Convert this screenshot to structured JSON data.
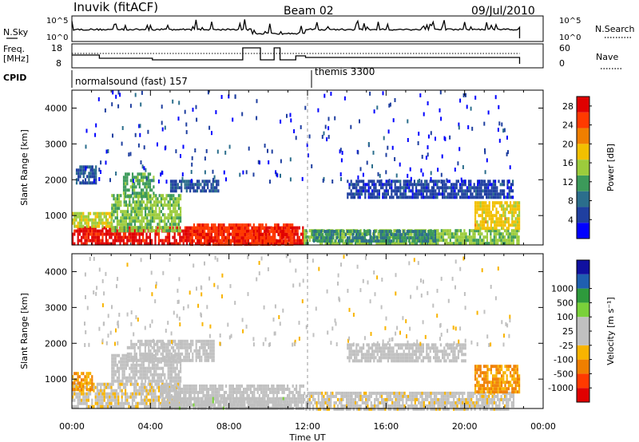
{
  "header": {
    "station": "Inuvik (fitACF)",
    "beam": "Beam 02",
    "date": "09/Jul/2010"
  },
  "strip_labels": {
    "nsky": "N.Sky",
    "nsky_top": "10^5",
    "nsky_bottom": "10^0",
    "nsearch": "N.Search",
    "nsearch_top": "10^5",
    "nsearch_bottom": "10^0",
    "freq_label_1": "Freq.",
    "freq_label_2": "[MHz]",
    "freq_top": "18",
    "freq_bottom": "8",
    "nave": "Nave",
    "nave_top": "60",
    "nave_bottom": "0",
    "cpid": "CPID",
    "cpid_1": "normalsound (fast) 157",
    "cpid_2": "themis 3300"
  },
  "x_axis": {
    "title": "Time UT",
    "ticks": [
      "00:00",
      "04:00",
      "08:00",
      "12:00",
      "16:00",
      "20:00",
      "00:00"
    ]
  },
  "colors": {
    "power": [
      "#0000ff",
      "#1f3fa0",
      "#2b6e8c",
      "#3c9a5a",
      "#9ccc3c",
      "#f2c000",
      "#f07f00",
      "#ff3a00",
      "#e00000"
    ],
    "velocity": [
      "#e00000",
      "#ff3a00",
      "#f07f00",
      "#f8b400",
      "#c0c0c0",
      "#c0c0c0",
      "#7ad13a",
      "#2e9a3c",
      "#1f5fb0",
      "#1010a0"
    ]
  },
  "chart_data": [
    {
      "type": "heatmap",
      "title": "",
      "ylabel": "Slant Range [km]",
      "xlabel": "",
      "xlim": [
        0,
        24
      ],
      "ylim": [
        180,
        4500
      ],
      "yticks": [
        "1000",
        "2000",
        "3000",
        "4000"
      ],
      "colorbar": {
        "label": "Power [dB]",
        "ticks": [
          "4",
          "8",
          "12",
          "16",
          "20",
          "24",
          "28"
        ],
        "range": [
          0,
          30
        ]
      },
      "bands": [
        {
          "t0": 0.0,
          "t1": 11.8,
          "r0": 190,
          "r1": 700,
          "value": 28
        },
        {
          "t0": 0.0,
          "t1": 2.0,
          "r0": 700,
          "r1": 1100,
          "value": 16
        },
        {
          "t0": 2.0,
          "t1": 5.5,
          "r0": 600,
          "r1": 1600,
          "value": 14
        },
        {
          "t0": 2.6,
          "t1": 4.2,
          "r0": 1500,
          "r1": 2200,
          "value": 12
        },
        {
          "t0": 5.0,
          "t1": 7.5,
          "r0": 1700,
          "r1": 2000,
          "value": 6
        },
        {
          "t0": 0.2,
          "t1": 1.2,
          "r0": 1900,
          "r1": 2400,
          "value": 6
        },
        {
          "t0": 6.0,
          "t1": 11.2,
          "r0": 200,
          "r1": 780,
          "value": 26
        },
        {
          "t0": 11.8,
          "t1": 22.8,
          "r0": 200,
          "r1": 620,
          "value": 14
        },
        {
          "t0": 12.2,
          "t1": 18.5,
          "r0": 300,
          "r1": 600,
          "value": 10
        },
        {
          "t0": 14.0,
          "t1": 22.5,
          "r0": 1500,
          "r1": 2000,
          "value": 5
        },
        {
          "t0": 20.5,
          "t1": 22.8,
          "r0": 600,
          "r1": 1400,
          "value": 18
        }
      ],
      "scatter_region": {
        "t0": 0.5,
        "t1": 22.5,
        "r0": 2000,
        "r1": 4500,
        "value": 4
      }
    },
    {
      "type": "heatmap",
      "title": "",
      "ylabel": "Slant Range [km]",
      "xlabel": "Time UT",
      "xlim": [
        0,
        24
      ],
      "ylim": [
        180,
        4500
      ],
      "yticks": [
        "1000",
        "2000",
        "3000",
        "4000"
      ],
      "colorbar": {
        "label": "Velocity [m s^-1]",
        "ticks": [
          "-1000",
          "-500",
          "-100",
          "-25",
          "25",
          "100",
          "500",
          "1000"
        ],
        "range": [
          -1200,
          1200
        ]
      },
      "bands": [
        {
          "t0": 0.0,
          "t1": 5.5,
          "r0": 190,
          "r1": 900,
          "value": -150
        },
        {
          "t0": 0.0,
          "t1": 1.0,
          "r0": 700,
          "r1": 1200,
          "value": -500
        },
        {
          "t0": 2.0,
          "t1": 5.5,
          "r0": 900,
          "r1": 1700,
          "value": -60
        },
        {
          "t0": 4.5,
          "t1": 11.8,
          "r0": 200,
          "r1": 850,
          "value": 0
        },
        {
          "t0": 5.0,
          "t1": 11.0,
          "r0": 190,
          "r1": 500,
          "value": 80
        },
        {
          "t0": 2.8,
          "t1": 7.2,
          "r0": 1500,
          "r1": 2100,
          "value": 0
        },
        {
          "t0": 11.8,
          "t1": 22.5,
          "r0": 200,
          "r1": 650,
          "value": -120
        },
        {
          "t0": 14.0,
          "t1": 20.0,
          "r0": 1500,
          "r1": 2000,
          "value": 0
        },
        {
          "t0": 20.5,
          "t1": 22.8,
          "r0": 600,
          "r1": 1400,
          "value": -500
        }
      ],
      "scatter_region": {
        "t0": 0.5,
        "t1": 22.5,
        "r0": 2000,
        "r1": 4500,
        "value": -60
      }
    }
  ]
}
